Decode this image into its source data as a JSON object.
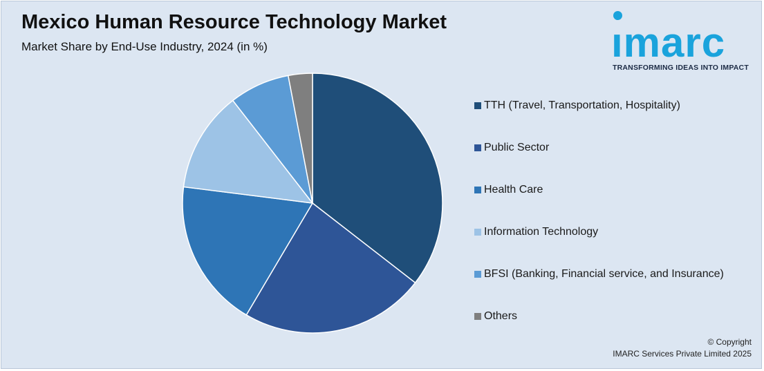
{
  "header": {
    "title": "Mexico Human Resource Technology Market",
    "subtitle": "Market Share by End-Use Industry, 2024 (in %)"
  },
  "logo": {
    "word": "ımarc",
    "tagline": "TRANSFORMING IDEAS INTO IMPACT",
    "color": "#1aa3dc"
  },
  "chart_data": {
    "type": "pie",
    "title": "Mexico Human Resource Technology Market",
    "subtitle": "Market Share by End-Use Industry, 2024 (in %)",
    "legend_position": "right",
    "series": [
      {
        "name": "TTH (Travel, Transportation, Hospitality)",
        "value": 35.5,
        "color": "#1f4e79"
      },
      {
        "name": "Public Sector",
        "value": 23.0,
        "color": "#2e5597"
      },
      {
        "name": "Health Care",
        "value": 18.5,
        "color": "#2e75b6"
      },
      {
        "name": "Information Technology",
        "value": 12.5,
        "color": "#9dc3e6"
      },
      {
        "name": "BFSI (Banking, Financial service, and Insurance)",
        "value": 7.5,
        "color": "#5b9bd5"
      },
      {
        "name": "Others",
        "value": 3.0,
        "color": "#7f7f7f"
      }
    ]
  },
  "footer": {
    "copyright_line1": "© Copyright",
    "copyright_line2": "IMARC Services Private Limited 2025"
  }
}
